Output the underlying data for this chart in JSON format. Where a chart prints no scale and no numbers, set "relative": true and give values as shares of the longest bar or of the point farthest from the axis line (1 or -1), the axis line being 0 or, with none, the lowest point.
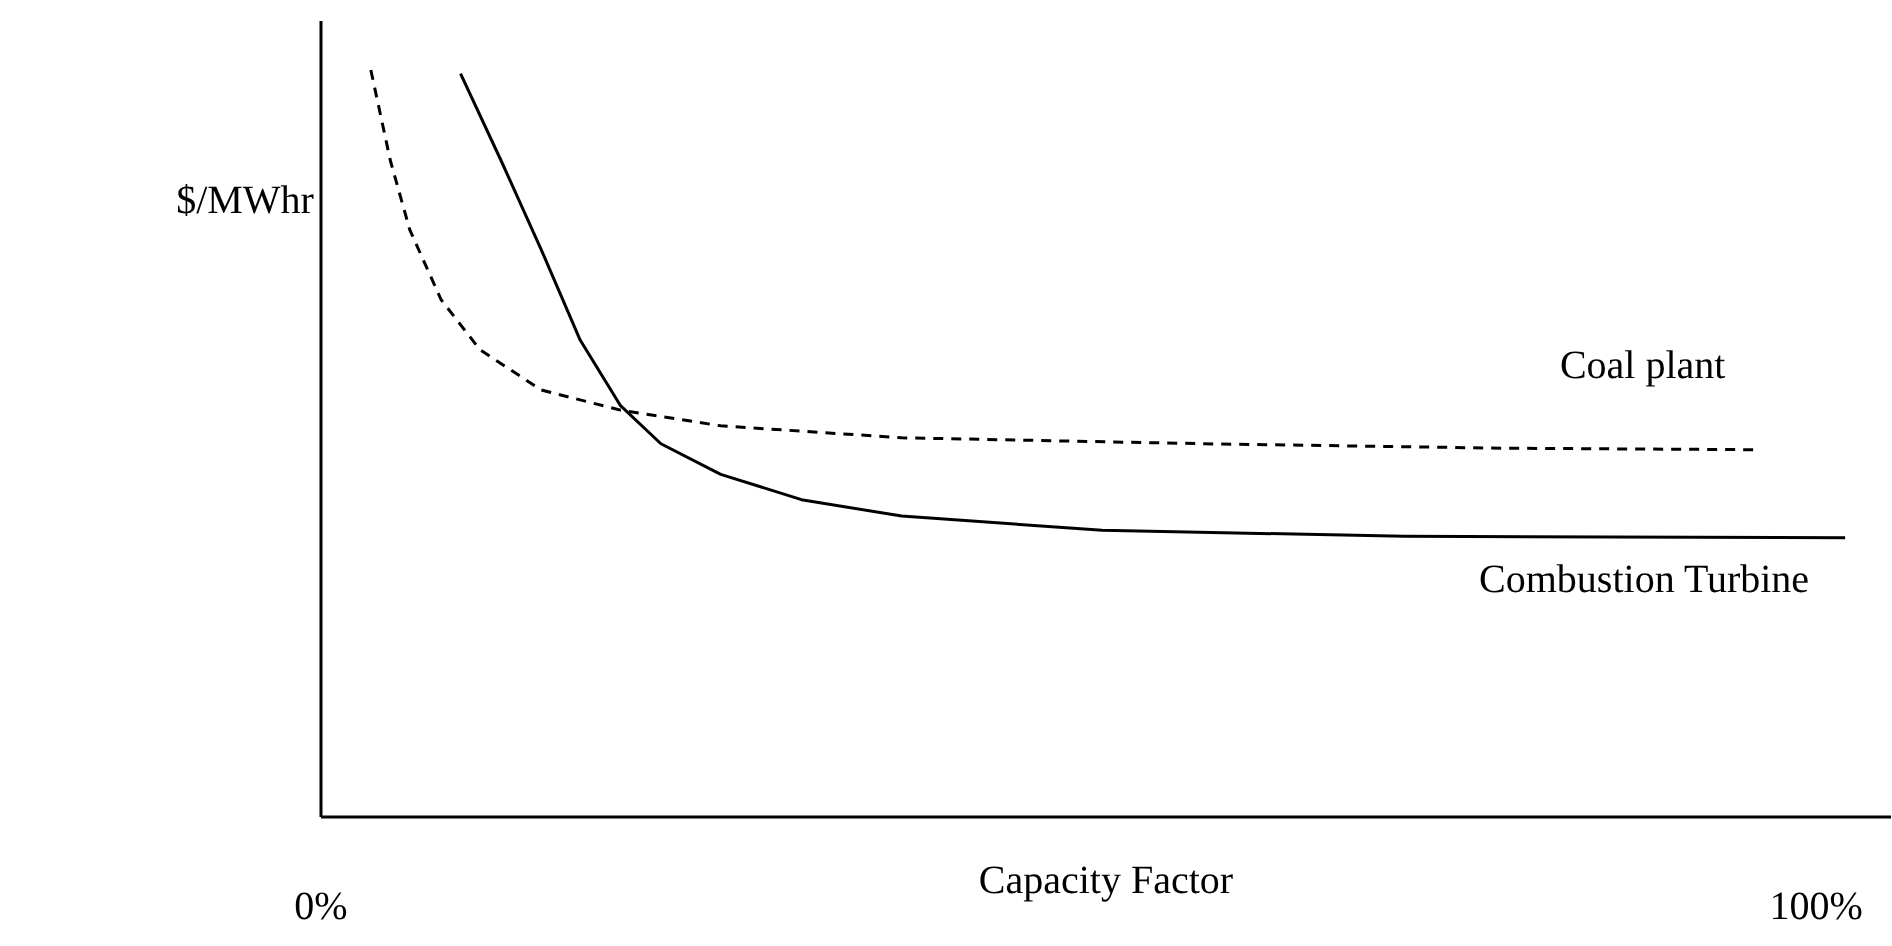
{
  "chart_data": {
    "type": "line",
    "relative": true,
    "xlabel": "Capacity Factor",
    "ylabel": "$/MWhr",
    "xlim": [
      0,
      105
    ],
    "xticks": [
      {
        "value": 0,
        "label": "0%"
      },
      {
        "value": 100,
        "label": "100%"
      }
    ],
    "grid": false,
    "marker": "none",
    "series": [
      {
        "name": "Coal plant",
        "color": "#000000",
        "line_style": "dashed",
        "x": [
          3.4,
          4.7,
          6.0,
          8.1,
          10.7,
          14.8,
          20.1,
          26.8,
          38.9,
          59.1,
          79.2,
          96.0
        ],
        "values": [
          1.0,
          0.879,
          0.786,
          0.692,
          0.625,
          0.571,
          0.544,
          0.523,
          0.507,
          0.499,
          0.493,
          0.491
        ]
      },
      {
        "name": "Combustion Turbine",
        "color": "#000000",
        "line_style": "solid",
        "x": [
          9.4,
          12.1,
          14.8,
          17.4,
          20.1,
          22.8,
          26.8,
          32.2,
          38.9,
          52.3,
          72.5,
          102.0
        ],
        "values": [
          0.995,
          0.879,
          0.759,
          0.638,
          0.55,
          0.499,
          0.458,
          0.424,
          0.402,
          0.383,
          0.375,
          0.373
        ]
      }
    ]
  }
}
